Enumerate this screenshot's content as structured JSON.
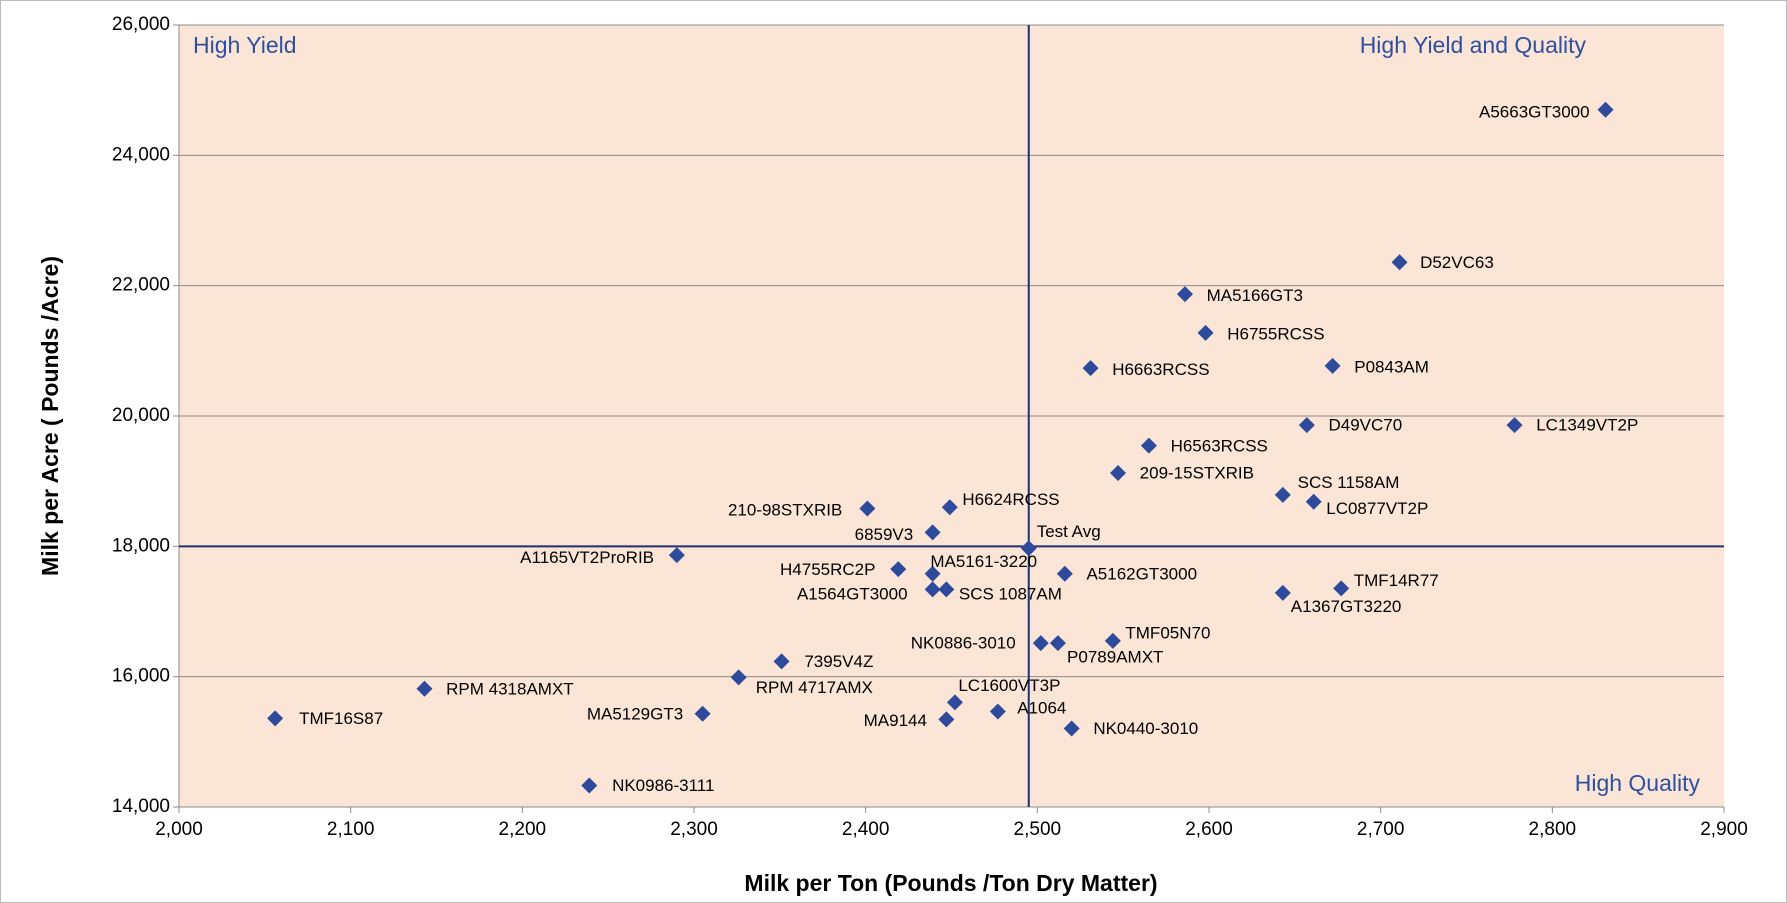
{
  "chart_data": {
    "type": "scatter",
    "xlabel": "Milk per Ton (Pounds /Ton Dry Matter)",
    "ylabel": "Milk per Acre ( Pounds /Acre)",
    "annotations": [
      "High Yield",
      "High Yield and Quality",
      "High Quality"
    ],
    "color": "#2e4a9b",
    "background": "#fbe5d6",
    "grid": true,
    "reference_lines": {
      "x": 2495,
      "y": 18000
    },
    "labels": [
      "A5663GT3000",
      "D52VC63",
      "MA5166GT3",
      "H6755RCSS",
      "H6663RCSS",
      "P0843AM",
      "D49VC70",
      "LC1349VT2P",
      "H6563RCSS",
      "209-15STXRIB",
      "SCS 1158AM",
      "LC0877VT2P",
      "210-98STXRIB",
      "H6624RCSS",
      "6859V3",
      "Test Avg",
      "A1165VT2ProRIB",
      "H4755RC2P",
      "MA5161-3220",
      "A5162GT3000",
      "A1564GT3000",
      "SCS 1087AM",
      "A1367GT3220",
      "TMF14R77",
      "TMF05N70",
      "NK0886-3010",
      "P0789AMXT",
      "7395V4Z",
      "RPM 4717AMX",
      "RPM 4318AMXT",
      "LC1600VT3P",
      "A1064",
      "TMF16S87",
      "MA5129GT3",
      "MA9144",
      "NK0440-3010",
      "NK0986-3111"
    ],
    "x": [
      2831,
      2711,
      2586,
      2598,
      2531,
      2672,
      2657,
      2778,
      2565,
      2547,
      2643,
      2661,
      2401,
      2449,
      2439,
      2495,
      2290,
      2419,
      2439,
      2516,
      2439,
      2447,
      2643,
      2677,
      2544,
      2502,
      2512,
      2351,
      2326,
      2143,
      2452,
      2477,
      2056,
      2305,
      2447,
      2520,
      2239
    ],
    "values": [
      24700,
      22360,
      21870,
      21275,
      20735,
      20770,
      19860,
      19860,
      19545,
      19125,
      18790,
      18685,
      18580,
      18600,
      18215,
      17970,
      17865,
      17650,
      17580,
      17580,
      17340,
      17340,
      17285,
      17355,
      16550,
      16515,
      16515,
      16235,
      15990,
      15815,
      15605,
      15465,
      15360,
      15430,
      15345,
      15205,
      14330
    ],
    "xlim": [
      2000,
      2900
    ],
    "xticks": [
      {
        "value": 2000,
        "label": "2,000"
      },
      {
        "value": 2100,
        "label": "2,100"
      },
      {
        "value": 2200,
        "label": "2,200"
      },
      {
        "value": 2300,
        "label": "2,300"
      },
      {
        "value": 2400,
        "label": "2,400"
      },
      {
        "value": 2500,
        "label": "2,500"
      },
      {
        "value": 2600,
        "label": "2,600"
      },
      {
        "value": 2700,
        "label": "2,700"
      },
      {
        "value": 2800,
        "label": "2,800"
      },
      {
        "value": 2900,
        "label": "2,900"
      }
    ],
    "ylim": [
      14000,
      26000
    ],
    "yticks": [
      {
        "value": 14000,
        "label": "14,000"
      },
      {
        "value": 16000,
        "label": "16,000"
      },
      {
        "value": 18000,
        "label": "18,000"
      },
      {
        "value": 20000,
        "label": "20,000"
      },
      {
        "value": 22000,
        "label": "22,000"
      },
      {
        "value": 24000,
        "label": "24,000"
      },
      {
        "value": 26000,
        "label": "26,000"
      }
    ]
  }
}
